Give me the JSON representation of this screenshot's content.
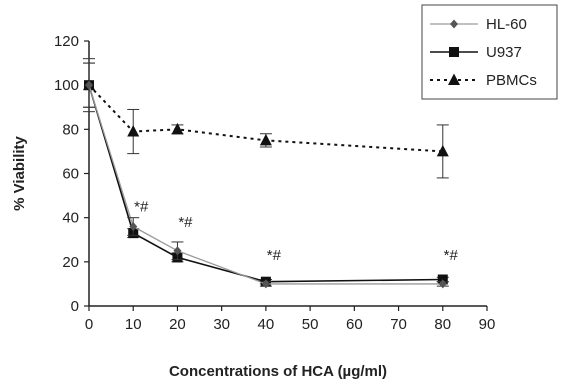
{
  "chart_data": {
    "type": "line",
    "xlabel": "Concentrations of HCA (µg/ml)",
    "ylabel": "% Viability",
    "xlim": [
      0,
      90
    ],
    "ylim": [
      0,
      120
    ],
    "xticks": [
      0,
      10,
      20,
      30,
      40,
      50,
      60,
      70,
      80,
      90
    ],
    "yticks": [
      0,
      20,
      40,
      60,
      80,
      100,
      120
    ],
    "x": [
      0,
      10,
      20,
      40,
      80
    ],
    "series": [
      {
        "name": "HL-60",
        "marker": "diamond",
        "style": "solid",
        "color": "#9a9a9a",
        "values": [
          100,
          36,
          25,
          10,
          10
        ],
        "errors": [
          10,
          4,
          4,
          1,
          1
        ]
      },
      {
        "name": "U937",
        "marker": "square",
        "style": "solid",
        "color": "#111111",
        "values": [
          100,
          33,
          22,
          11,
          12
        ],
        "errors": [
          12,
          2,
          2,
          1,
          1
        ]
      },
      {
        "name": "PBMCs",
        "marker": "triangle",
        "style": "dotted",
        "color": "#111111",
        "values": [
          100,
          79,
          80,
          75,
          70
        ],
        "errors": [
          10,
          10,
          2,
          3,
          12
        ]
      }
    ],
    "annotations": [
      {
        "text": "*#",
        "x": 10,
        "y": 45
      },
      {
        "text": "*#",
        "x": 20,
        "y": 38
      },
      {
        "text": "*#",
        "x": 40,
        "y": 23
      },
      {
        "text": "*#",
        "x": 80,
        "y": 23
      }
    ],
    "legend_position": "top-right",
    "grid": false
  }
}
